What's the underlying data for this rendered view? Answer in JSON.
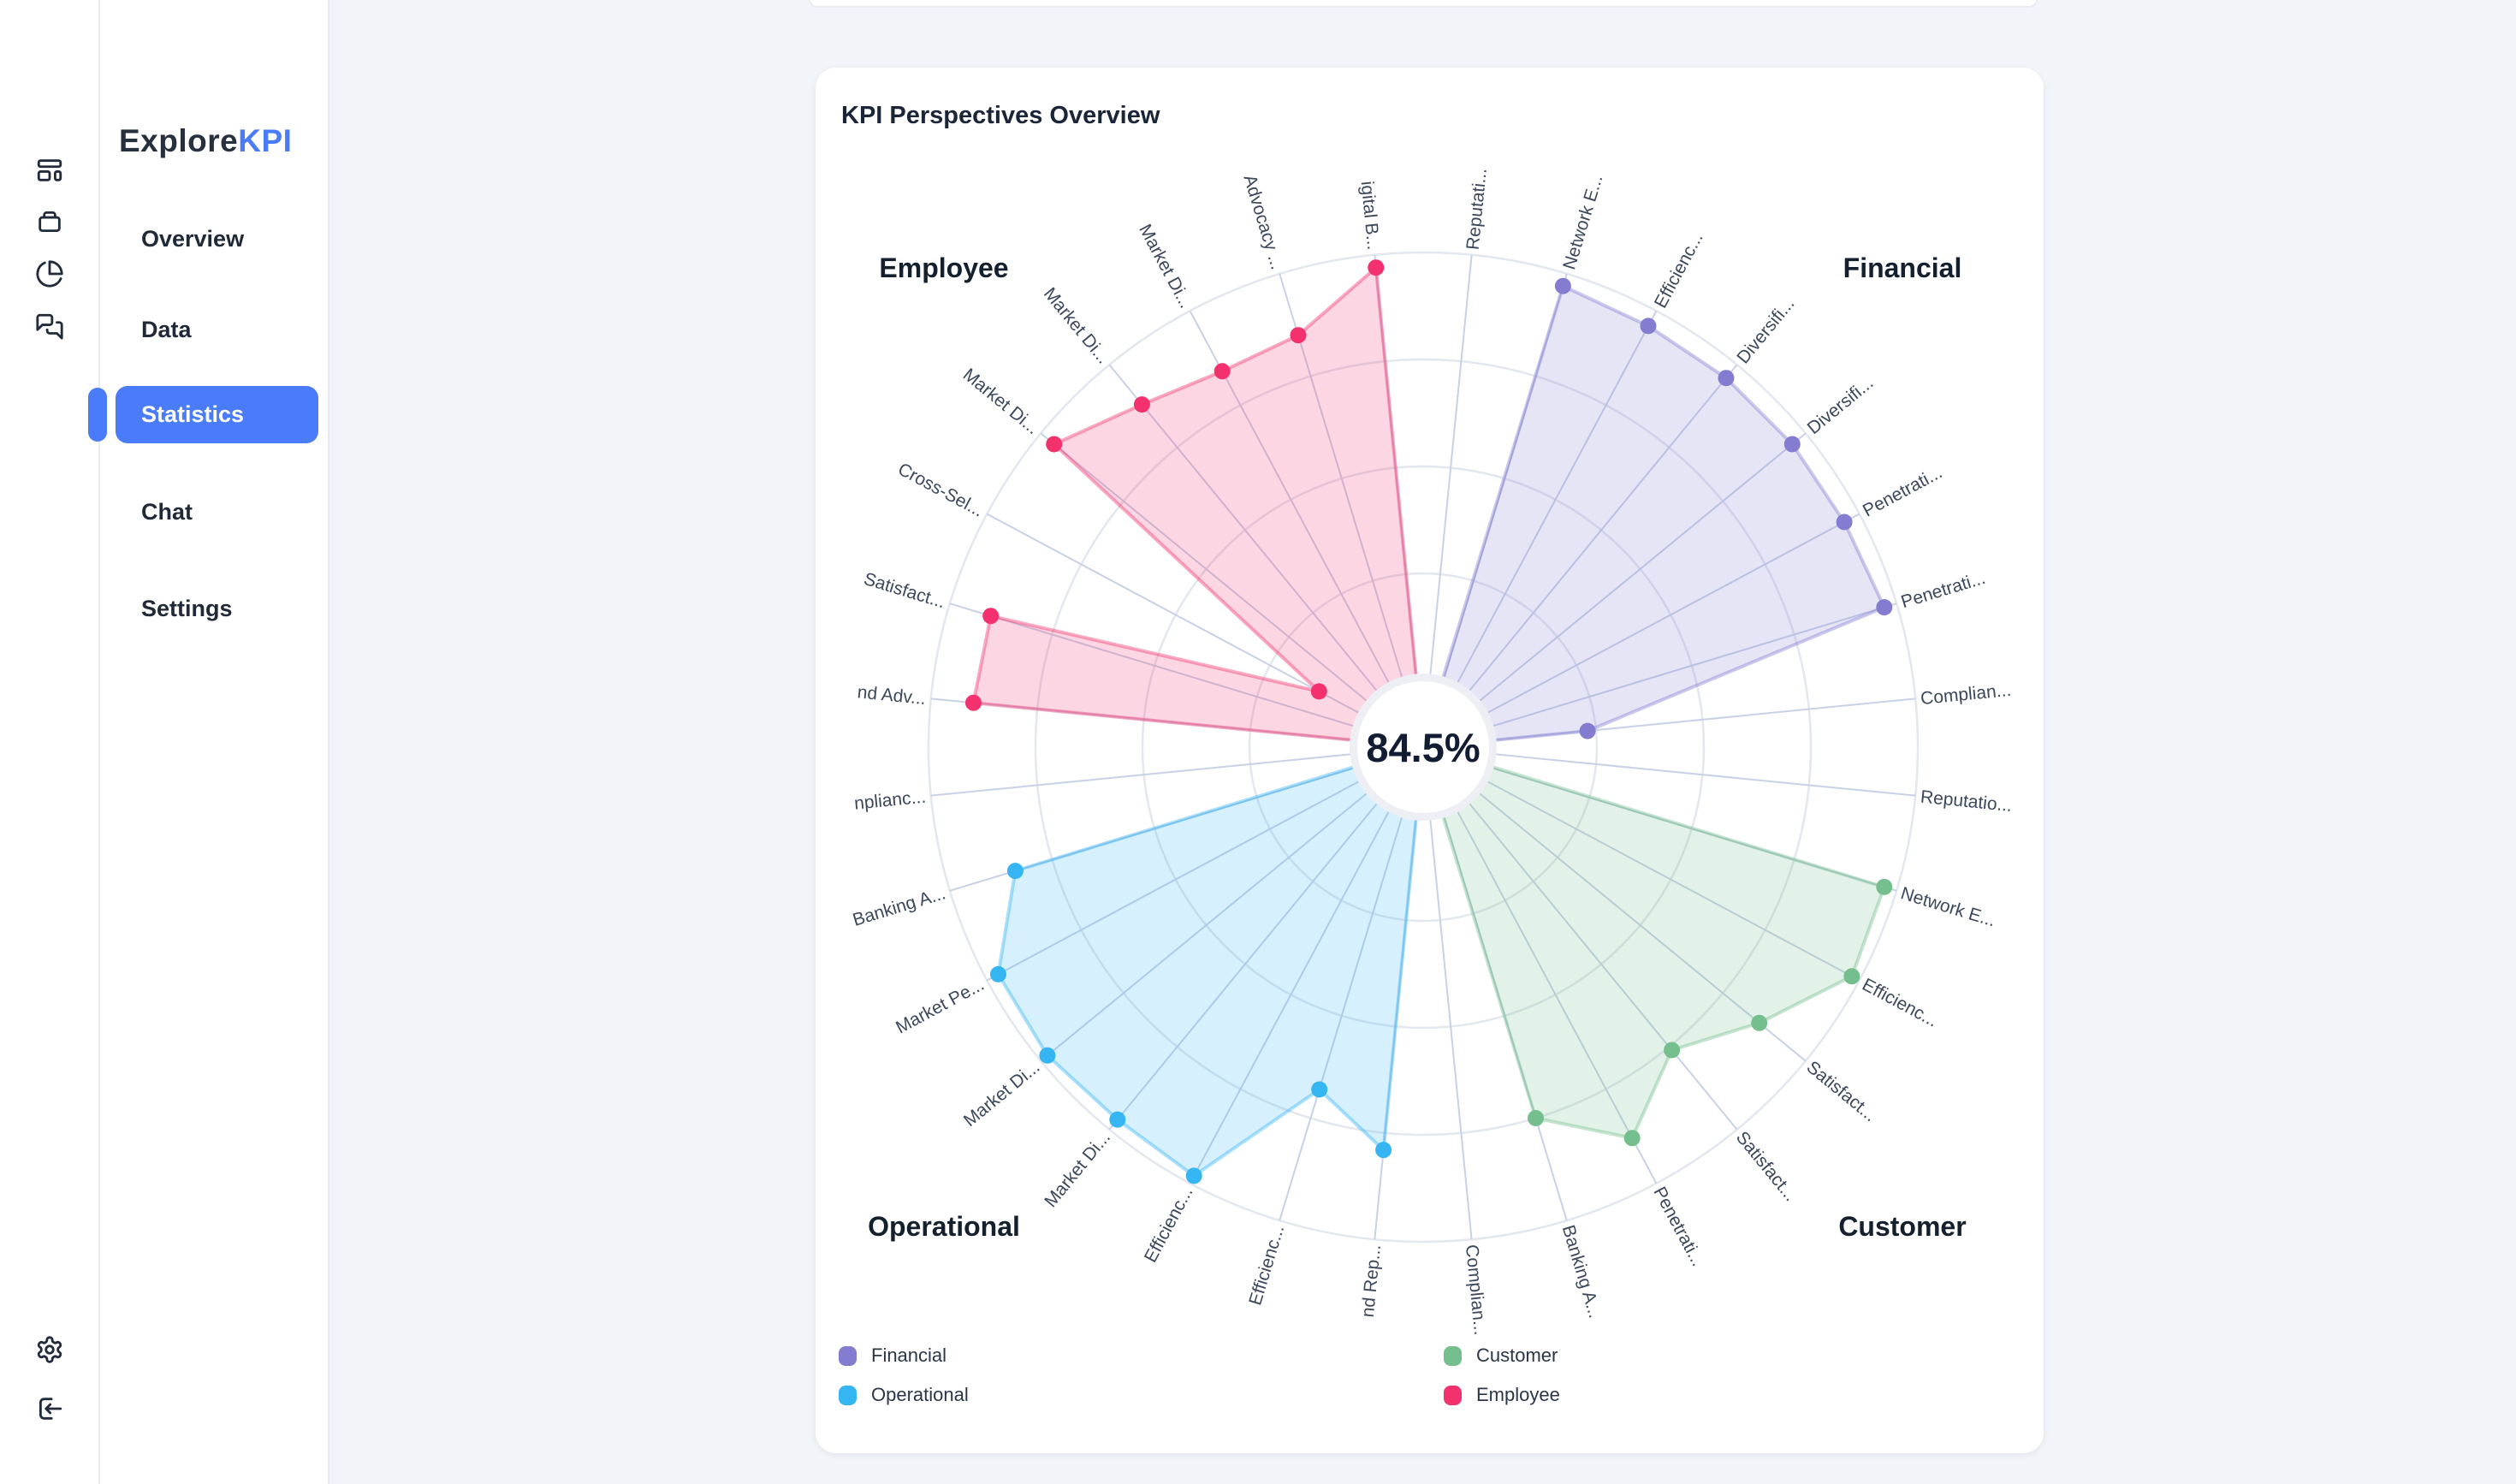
{
  "sidebar": {
    "logo": {
      "part1": "Explore",
      "part2": "KPI"
    },
    "rail_icons": [
      "layout-dashboard-icon",
      "archive-icon",
      "pie-chart-icon",
      "messages-icon"
    ],
    "rail_footer_icons": [
      "settings-icon",
      "log-in-icon"
    ],
    "items": [
      {
        "label": "Overview",
        "active": false
      },
      {
        "label": "Data",
        "active": false
      },
      {
        "label": "Statistics",
        "active": true
      },
      {
        "label": "Chat",
        "active": false
      },
      {
        "label": "Settings",
        "active": false
      }
    ]
  },
  "card": {
    "title": "KPI Perspectives Overview"
  },
  "chart_data": {
    "type": "radar",
    "title": "KPI Perspectives Overview",
    "center_label": "84.5%",
    "rings": 4,
    "value_range": [
      0,
      100
    ],
    "spokes_per_group": 8,
    "first_spoke_angle_deg": 5.625,
    "spoke_step_deg": 11.25,
    "legend_order": [
      "Financial",
      "Customer",
      "Operational",
      "Employee"
    ],
    "series": [
      {
        "name": "Financial",
        "color": "#837cd1",
        "quadrant_label_angle": 45,
        "indicators": [
          "Reputati...",
          "Network E...",
          "Efficienc...",
          "Diversifi...",
          "Diversifi...",
          "Penetrati...",
          "Penetrati...",
          "Complian..."
        ],
        "values": [
          0,
          97,
          96,
          96,
          96,
          96,
          97,
          23
        ]
      },
      {
        "name": "Customer",
        "color": "#74bf8d",
        "quadrant_label_angle": 135,
        "indicators": [
          "Reputatio...",
          "Network E...",
          "Efficienc...",
          "Satisfact...",
          "Satisfact...",
          "Penetrati...",
          "Banking A...",
          "Complian..."
        ],
        "values": [
          0,
          97,
          98,
          86,
          76,
          88,
          75,
          0
        ]
      },
      {
        "name": "Operational",
        "color": "#35b6f3",
        "quadrant_label_angle": 225,
        "indicators": [
          "nd Rep...",
          "Efficienc...",
          "Efficienc...",
          "Market Di...",
          "Market Di...",
          "Market Pe...",
          "Banking A...",
          "nplianc..."
        ],
        "values": [
          79,
          68,
          98,
          97,
          98,
          97,
          84,
          0
        ]
      },
      {
        "name": "Employee",
        "color": "#f2316e",
        "quadrant_label_angle": 315,
        "indicators": [
          "nd Adv...",
          "Satisfact...",
          "Cross-Sel...",
          "Market Di...",
          "Market Di...",
          "Market Di...",
          "Advocacy ...",
          "igital B..."
        ],
        "values": [
          90,
          90,
          12,
          96,
          88,
          84,
          85,
          97
        ]
      }
    ],
    "style": {
      "grid_ring_color": "#e3e7ee",
      "spoke_color": "#c9d1e7",
      "label_color": "#3c485c",
      "quadrant_label_color": "#15202f",
      "center_text_color": "#121d33",
      "hole_ring_color": "#edeff4"
    }
  }
}
